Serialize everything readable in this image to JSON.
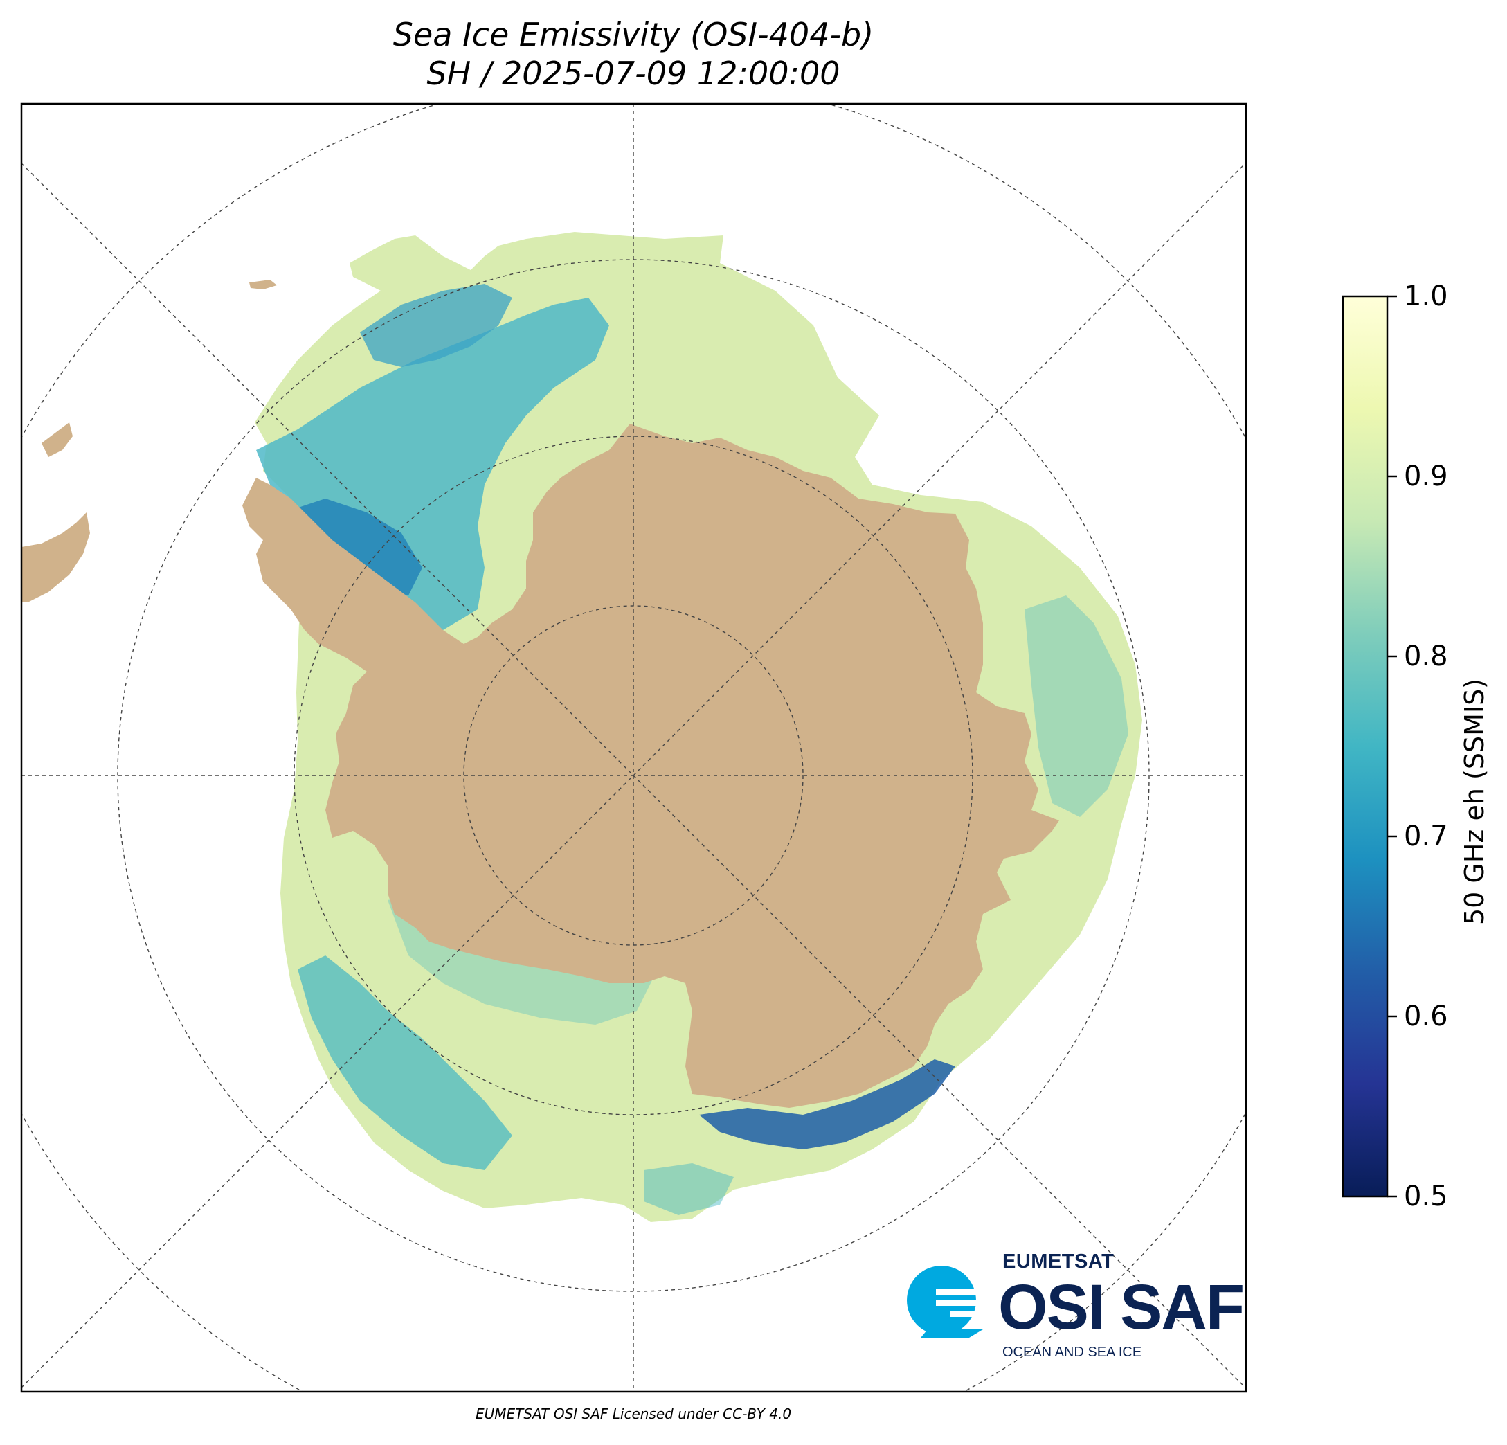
{
  "title_line1": "Sea Ice Emissivity (OSI-404-b)",
  "title_line2": "SH / 2025-07-09 12:00:00",
  "colorbar": {
    "label": "50 GHz eh (SSMIS)",
    "min": 0.5,
    "max": 1.0,
    "ticks": [
      "0.5",
      "0.6",
      "0.7",
      "0.8",
      "0.9",
      "1.0"
    ],
    "colormap": "YlGnBu_r",
    "stops": [
      "#081d58",
      "#253494",
      "#225ea8",
      "#1d91c0",
      "#41b6c4",
      "#7fcdbb",
      "#c7e9b4",
      "#edf8b1",
      "#ffffd9"
    ]
  },
  "map": {
    "projection": "south polar stereographic",
    "region": "SH",
    "land_color": "#d0b28b",
    "ice_default_color": "#d9ecb0",
    "grid_color": "#444444"
  },
  "logo": {
    "top": "EUMETSAT",
    "main": "OSI SAF",
    "sub": "OCEAN AND SEA ICE",
    "color": "#0b2353",
    "accent": "#00a9e0"
  },
  "credit": "EUMETSAT OSI SAF Licensed under CC-BY 4.0"
}
